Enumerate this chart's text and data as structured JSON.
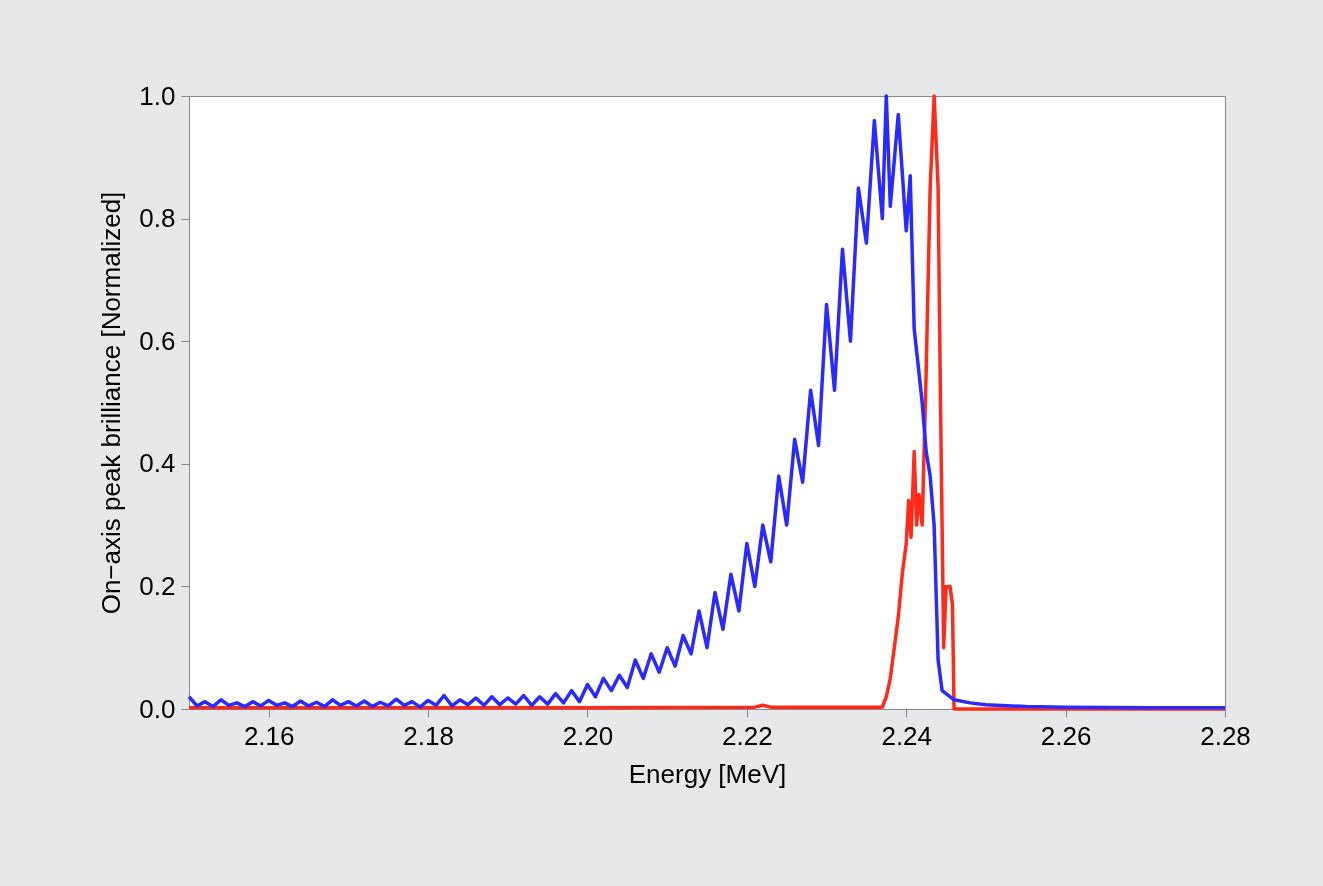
{
  "chart_data": {
    "type": "line",
    "xlabel": "Energy [MeV]",
    "ylabel": "On−axis peak brilliance [Normalized]",
    "xlim": [
      2.15,
      2.28
    ],
    "ylim": [
      0,
      1.0
    ],
    "xticks": [
      {
        "value": 2.16,
        "label": "2.16"
      },
      {
        "value": 2.18,
        "label": "2.18"
      },
      {
        "value": 2.2,
        "label": "2.20"
      },
      {
        "value": 2.22,
        "label": "2.22"
      },
      {
        "value": 2.24,
        "label": "2.24"
      },
      {
        "value": 2.26,
        "label": "2.26"
      },
      {
        "value": 2.28,
        "label": "2.28"
      }
    ],
    "yticks": [
      {
        "value": 0,
        "label": "0.0"
      },
      {
        "value": 0.2,
        "label": "0.2"
      },
      {
        "value": 0.4,
        "label": "0.4"
      },
      {
        "value": 0.6,
        "label": "0.6"
      },
      {
        "value": 0.8,
        "label": "0.8"
      },
      {
        "value": 1,
        "label": "1.0"
      }
    ],
    "grid": false,
    "series": [
      {
        "color": "#ff2a1a",
        "x": [
          2.15,
          2.18,
          2.2,
          2.221,
          2.222,
          2.223,
          2.237,
          2.2375,
          2.238,
          2.2385,
          2.239,
          2.2395,
          2.24,
          2.2403,
          2.2406,
          2.241,
          2.2413,
          2.2416,
          2.242,
          2.2425,
          2.243,
          2.2435,
          2.244,
          2.2443,
          2.2447,
          2.245,
          2.2455,
          2.2458,
          2.246,
          2.28
        ],
        "values": [
          0.002,
          0.002,
          0.002,
          0.003,
          0.006,
          0.003,
          0.003,
          0.02,
          0.05,
          0.1,
          0.15,
          0.22,
          0.27,
          0.34,
          0.28,
          0.42,
          0.3,
          0.35,
          0.3,
          0.55,
          0.85,
          1.0,
          0.85,
          0.5,
          0.1,
          0.2,
          0.2,
          0.17,
          0.0,
          0.0
        ]
      },
      {
        "color": "#2a2aff",
        "x": [
          2.15,
          2.151,
          2.152,
          2.153,
          2.154,
          2.155,
          2.156,
          2.157,
          2.158,
          2.159,
          2.16,
          2.161,
          2.162,
          2.163,
          2.164,
          2.165,
          2.166,
          2.167,
          2.168,
          2.169,
          2.17,
          2.171,
          2.172,
          2.173,
          2.174,
          2.175,
          2.176,
          2.177,
          2.178,
          2.179,
          2.18,
          2.181,
          2.182,
          2.183,
          2.184,
          2.185,
          2.186,
          2.187,
          2.188,
          2.189,
          2.19,
          2.191,
          2.192,
          2.193,
          2.194,
          2.195,
          2.196,
          2.197,
          2.198,
          2.199,
          2.2,
          2.201,
          2.202,
          2.203,
          2.204,
          2.205,
          2.206,
          2.207,
          2.208,
          2.209,
          2.21,
          2.211,
          2.212,
          2.213,
          2.214,
          2.215,
          2.216,
          2.217,
          2.218,
          2.219,
          2.22,
          2.221,
          2.222,
          2.223,
          2.224,
          2.225,
          2.226,
          2.227,
          2.228,
          2.229,
          2.23,
          2.231,
          2.232,
          2.233,
          2.234,
          2.235,
          2.236,
          2.237,
          2.2375,
          2.238,
          2.239,
          2.24,
          2.2405,
          2.241,
          2.242,
          2.2425,
          2.243,
          2.2435,
          2.244,
          2.2445,
          2.245,
          2.246,
          2.248,
          2.25,
          2.255,
          2.26,
          2.27,
          2.28
        ],
        "values": [
          0.02,
          0.005,
          0.012,
          0.004,
          0.015,
          0.006,
          0.01,
          0.004,
          0.012,
          0.005,
          0.014,
          0.006,
          0.01,
          0.004,
          0.013,
          0.005,
          0.011,
          0.004,
          0.015,
          0.006,
          0.012,
          0.005,
          0.013,
          0.004,
          0.011,
          0.005,
          0.016,
          0.006,
          0.012,
          0.003,
          0.014,
          0.006,
          0.022,
          0.005,
          0.015,
          0.007,
          0.018,
          0.006,
          0.02,
          0.007,
          0.018,
          0.008,
          0.022,
          0.006,
          0.02,
          0.008,
          0.025,
          0.01,
          0.03,
          0.012,
          0.04,
          0.02,
          0.05,
          0.03,
          0.055,
          0.035,
          0.08,
          0.05,
          0.09,
          0.06,
          0.1,
          0.07,
          0.12,
          0.09,
          0.16,
          0.1,
          0.19,
          0.13,
          0.22,
          0.16,
          0.27,
          0.2,
          0.3,
          0.24,
          0.38,
          0.3,
          0.44,
          0.37,
          0.52,
          0.43,
          0.66,
          0.52,
          0.75,
          0.6,
          0.85,
          0.76,
          0.96,
          0.8,
          1.0,
          0.82,
          0.97,
          0.78,
          0.87,
          0.62,
          0.5,
          0.42,
          0.38,
          0.3,
          0.08,
          0.03,
          0.025,
          0.015,
          0.01,
          0.007,
          0.004,
          0.003,
          0.002,
          0.002
        ]
      }
    ]
  }
}
